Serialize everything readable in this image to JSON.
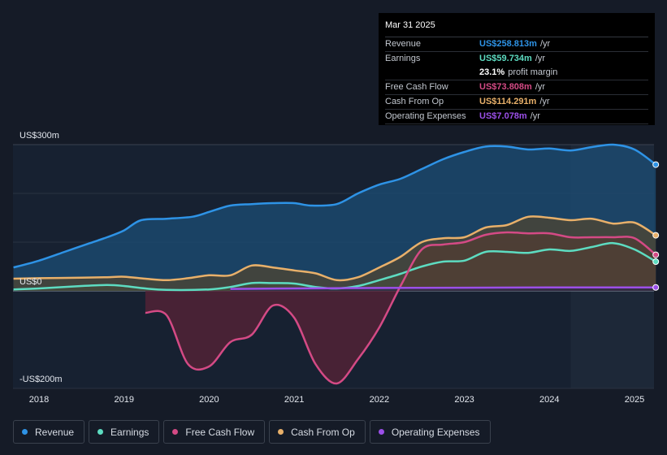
{
  "chart_data": {
    "type": "area",
    "y_axis": {
      "label_top": "US$300m",
      "label_zero": "US$0",
      "label_bottom": "-US$200m",
      "ylim": [
        -200,
        300
      ]
    },
    "x_ticks": [
      "2018",
      "2019",
      "2020",
      "2021",
      "2022",
      "2023",
      "2024",
      "2025"
    ],
    "x_range": [
      2017.7,
      2025.25
    ],
    "forecast_start": 2024.25,
    "series": [
      {
        "name": "Revenue",
        "color": "#2e93e6",
        "fill": "#1c4e75",
        "x": [
          2017.7,
          2018.0,
          2018.3,
          2018.6,
          2018.8,
          2019.0,
          2019.2,
          2019.5,
          2019.8,
          2020.0,
          2020.25,
          2020.5,
          2020.75,
          2021.0,
          2021.2,
          2021.5,
          2021.75,
          2022.0,
          2022.25,
          2022.5,
          2022.75,
          2023.0,
          2023.25,
          2023.5,
          2023.75,
          2024.0,
          2024.25,
          2024.5,
          2024.75,
          2025.0,
          2025.25
        ],
        "values": [
          48,
          62,
          80,
          98,
          110,
          124,
          145,
          148,
          152,
          162,
          175,
          178,
          180,
          180,
          175,
          178,
          200,
          218,
          230,
          250,
          270,
          285,
          296,
          296,
          290,
          292,
          288,
          295,
          300,
          290,
          259
        ]
      },
      {
        "name": "Earnings",
        "color": "#5ddcc1",
        "fill": "#2a5a5b",
        "x": [
          2017.7,
          2018.0,
          2018.5,
          2018.8,
          2019.0,
          2019.25,
          2019.5,
          2020.0,
          2020.25,
          2020.5,
          2020.75,
          2021.0,
          2021.25,
          2021.5,
          2021.75,
          2022.0,
          2022.25,
          2022.5,
          2022.75,
          2023.0,
          2023.25,
          2023.5,
          2023.75,
          2024.0,
          2024.25,
          2024.5,
          2024.75,
          2025.0,
          2025.25
        ],
        "values": [
          3,
          5,
          10,
          12,
          10,
          5,
          2,
          3,
          8,
          16,
          16,
          15,
          8,
          5,
          10,
          22,
          35,
          50,
          60,
          62,
          80,
          80,
          78,
          85,
          82,
          90,
          98,
          85,
          60
        ]
      },
      {
        "name": "Free Cash Flow",
        "color": "#d44a85",
        "fill": "#5a2337",
        "x": [
          2019.25,
          2019.5,
          2019.75,
          2020.0,
          2020.25,
          2020.5,
          2020.75,
          2021.0,
          2021.25,
          2021.5,
          2021.75,
          2022.0,
          2022.25,
          2022.5,
          2022.75,
          2023.0,
          2023.25,
          2023.5,
          2023.75,
          2024.0,
          2024.25,
          2024.5,
          2024.75,
          2025.0,
          2025.25
        ],
        "values": [
          -45,
          -50,
          -150,
          -155,
          -105,
          -90,
          -30,
          -55,
          -150,
          -190,
          -140,
          -75,
          10,
          85,
          95,
          100,
          115,
          120,
          118,
          118,
          110,
          110,
          110,
          108,
          74
        ]
      },
      {
        "name": "Cash From Op",
        "color": "#e8b06a",
        "fill": "#4f4531",
        "x": [
          2017.7,
          2018.0,
          2018.5,
          2018.8,
          2019.0,
          2019.25,
          2019.5,
          2019.75,
          2020.0,
          2020.25,
          2020.5,
          2020.75,
          2021.0,
          2021.25,
          2021.5,
          2021.75,
          2022.0,
          2022.25,
          2022.5,
          2022.75,
          2023.0,
          2023.25,
          2023.5,
          2023.75,
          2024.0,
          2024.25,
          2024.5,
          2024.75,
          2025.0,
          2025.25
        ],
        "values": [
          25,
          26,
          27,
          28,
          29,
          25,
          22,
          26,
          32,
          32,
          52,
          48,
          42,
          36,
          22,
          28,
          48,
          70,
          100,
          108,
          110,
          130,
          135,
          152,
          150,
          145,
          148,
          138,
          140,
          114
        ]
      },
      {
        "name": "Operating Expenses",
        "color": "#9b4fe8",
        "fill": "#2d2a4a",
        "x": [
          2020.25,
          2021.0,
          2022.0,
          2023.0,
          2024.0,
          2025.25
        ],
        "values": [
          4,
          5,
          6,
          6.5,
          7,
          7.1
        ]
      }
    ]
  },
  "tooltip": {
    "date": "Mar 31 2025",
    "rows": [
      {
        "label": "Revenue",
        "value": "US$258.813m",
        "unit": "/yr",
        "color": "#2e93e6"
      },
      {
        "label": "Earnings",
        "value": "US$59.734m",
        "unit": "/yr",
        "color": "#5ddcc1"
      },
      {
        "label": "",
        "value": "23.1%",
        "unit": "profit margin",
        "color": "#ffffff"
      },
      {
        "label": "Free Cash Flow",
        "value": "US$73.808m",
        "unit": "/yr",
        "color": "#d44a85"
      },
      {
        "label": "Cash From Op",
        "value": "US$114.291m",
        "unit": "/yr",
        "color": "#e8b06a"
      },
      {
        "label": "Operating Expenses",
        "value": "US$7.078m",
        "unit": "/yr",
        "color": "#9b4fe8"
      }
    ]
  },
  "legend": [
    {
      "label": "Revenue",
      "color": "#2e93e6"
    },
    {
      "label": "Earnings",
      "color": "#5ddcc1"
    },
    {
      "label": "Free Cash Flow",
      "color": "#d44a85"
    },
    {
      "label": "Cash From Op",
      "color": "#e8b06a"
    },
    {
      "label": "Operating Expenses",
      "color": "#9b4fe8"
    }
  ]
}
